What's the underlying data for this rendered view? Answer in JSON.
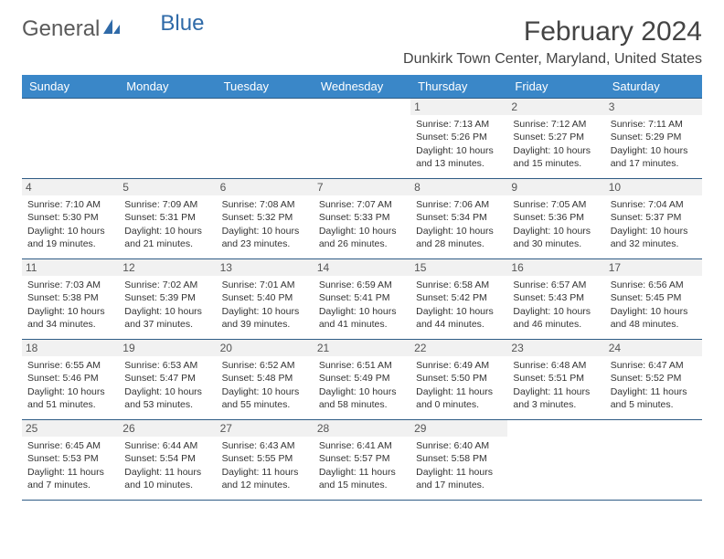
{
  "logo": {
    "text1": "General",
    "text2": "Blue",
    "color1": "#6a6a6a",
    "color2": "#2f6aa8"
  },
  "header": {
    "month_title": "February 2024",
    "location": "Dunkirk Town Center, Maryland, United States"
  },
  "calendar": {
    "header_bg": "#3a87c8",
    "header_fg": "#ffffff",
    "border_color": "#2f5c85",
    "day_bg": "#f1f1f1",
    "days": [
      "Sunday",
      "Monday",
      "Tuesday",
      "Wednesday",
      "Thursday",
      "Friday",
      "Saturday"
    ],
    "weeks": [
      [
        null,
        null,
        null,
        null,
        {
          "n": "1",
          "sunrise": "7:13 AM",
          "sunset": "5:26 PM",
          "dl1": "Daylight: 10 hours",
          "dl2": "and 13 minutes."
        },
        {
          "n": "2",
          "sunrise": "7:12 AM",
          "sunset": "5:27 PM",
          "dl1": "Daylight: 10 hours",
          "dl2": "and 15 minutes."
        },
        {
          "n": "3",
          "sunrise": "7:11 AM",
          "sunset": "5:29 PM",
          "dl1": "Daylight: 10 hours",
          "dl2": "and 17 minutes."
        }
      ],
      [
        {
          "n": "4",
          "sunrise": "7:10 AM",
          "sunset": "5:30 PM",
          "dl1": "Daylight: 10 hours",
          "dl2": "and 19 minutes."
        },
        {
          "n": "5",
          "sunrise": "7:09 AM",
          "sunset": "5:31 PM",
          "dl1": "Daylight: 10 hours",
          "dl2": "and 21 minutes."
        },
        {
          "n": "6",
          "sunrise": "7:08 AM",
          "sunset": "5:32 PM",
          "dl1": "Daylight: 10 hours",
          "dl2": "and 23 minutes."
        },
        {
          "n": "7",
          "sunrise": "7:07 AM",
          "sunset": "5:33 PM",
          "dl1": "Daylight: 10 hours",
          "dl2": "and 26 minutes."
        },
        {
          "n": "8",
          "sunrise": "7:06 AM",
          "sunset": "5:34 PM",
          "dl1": "Daylight: 10 hours",
          "dl2": "and 28 minutes."
        },
        {
          "n": "9",
          "sunrise": "7:05 AM",
          "sunset": "5:36 PM",
          "dl1": "Daylight: 10 hours",
          "dl2": "and 30 minutes."
        },
        {
          "n": "10",
          "sunrise": "7:04 AM",
          "sunset": "5:37 PM",
          "dl1": "Daylight: 10 hours",
          "dl2": "and 32 minutes."
        }
      ],
      [
        {
          "n": "11",
          "sunrise": "7:03 AM",
          "sunset": "5:38 PM",
          "dl1": "Daylight: 10 hours",
          "dl2": "and 34 minutes."
        },
        {
          "n": "12",
          "sunrise": "7:02 AM",
          "sunset": "5:39 PM",
          "dl1": "Daylight: 10 hours",
          "dl2": "and 37 minutes."
        },
        {
          "n": "13",
          "sunrise": "7:01 AM",
          "sunset": "5:40 PM",
          "dl1": "Daylight: 10 hours",
          "dl2": "and 39 minutes."
        },
        {
          "n": "14",
          "sunrise": "6:59 AM",
          "sunset": "5:41 PM",
          "dl1": "Daylight: 10 hours",
          "dl2": "and 41 minutes."
        },
        {
          "n": "15",
          "sunrise": "6:58 AM",
          "sunset": "5:42 PM",
          "dl1": "Daylight: 10 hours",
          "dl2": "and 44 minutes."
        },
        {
          "n": "16",
          "sunrise": "6:57 AM",
          "sunset": "5:43 PM",
          "dl1": "Daylight: 10 hours",
          "dl2": "and 46 minutes."
        },
        {
          "n": "17",
          "sunrise": "6:56 AM",
          "sunset": "5:45 PM",
          "dl1": "Daylight: 10 hours",
          "dl2": "and 48 minutes."
        }
      ],
      [
        {
          "n": "18",
          "sunrise": "6:55 AM",
          "sunset": "5:46 PM",
          "dl1": "Daylight: 10 hours",
          "dl2": "and 51 minutes."
        },
        {
          "n": "19",
          "sunrise": "6:53 AM",
          "sunset": "5:47 PM",
          "dl1": "Daylight: 10 hours",
          "dl2": "and 53 minutes."
        },
        {
          "n": "20",
          "sunrise": "6:52 AM",
          "sunset": "5:48 PM",
          "dl1": "Daylight: 10 hours",
          "dl2": "and 55 minutes."
        },
        {
          "n": "21",
          "sunrise": "6:51 AM",
          "sunset": "5:49 PM",
          "dl1": "Daylight: 10 hours",
          "dl2": "and 58 minutes."
        },
        {
          "n": "22",
          "sunrise": "6:49 AM",
          "sunset": "5:50 PM",
          "dl1": "Daylight: 11 hours",
          "dl2": "and 0 minutes."
        },
        {
          "n": "23",
          "sunrise": "6:48 AM",
          "sunset": "5:51 PM",
          "dl1": "Daylight: 11 hours",
          "dl2": "and 3 minutes."
        },
        {
          "n": "24",
          "sunrise": "6:47 AM",
          "sunset": "5:52 PM",
          "dl1": "Daylight: 11 hours",
          "dl2": "and 5 minutes."
        }
      ],
      [
        {
          "n": "25",
          "sunrise": "6:45 AM",
          "sunset": "5:53 PM",
          "dl1": "Daylight: 11 hours",
          "dl2": "and 7 minutes."
        },
        {
          "n": "26",
          "sunrise": "6:44 AM",
          "sunset": "5:54 PM",
          "dl1": "Daylight: 11 hours",
          "dl2": "and 10 minutes."
        },
        {
          "n": "27",
          "sunrise": "6:43 AM",
          "sunset": "5:55 PM",
          "dl1": "Daylight: 11 hours",
          "dl2": "and 12 minutes."
        },
        {
          "n": "28",
          "sunrise": "6:41 AM",
          "sunset": "5:57 PM",
          "dl1": "Daylight: 11 hours",
          "dl2": "and 15 minutes."
        },
        {
          "n": "29",
          "sunrise": "6:40 AM",
          "sunset": "5:58 PM",
          "dl1": "Daylight: 11 hours",
          "dl2": "and 17 minutes."
        },
        null,
        null
      ]
    ]
  }
}
